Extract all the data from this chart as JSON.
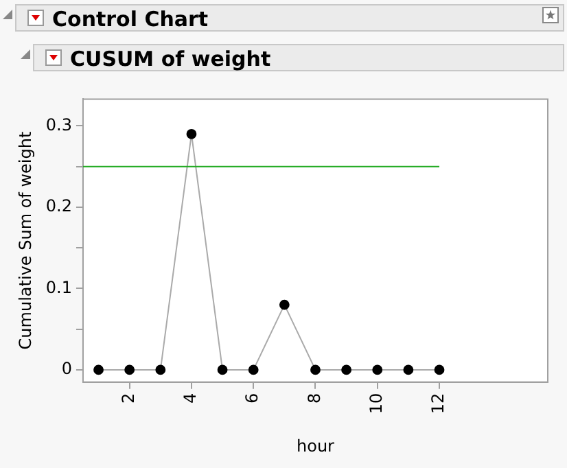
{
  "chart_data": {
    "type": "line",
    "title": "Control Chart",
    "subtitle": "CUSUM of weight",
    "xlabel": "hour",
    "ylabel": "Cumulative Sum of weight",
    "x": [
      1,
      2,
      3,
      4,
      5,
      6,
      7,
      8,
      9,
      10,
      11,
      12
    ],
    "series": [
      {
        "color": "#000000",
        "values": [
          0,
          0,
          0,
          0.29,
          0,
          0,
          0.08,
          0,
          0,
          0,
          0,
          0
        ]
      }
    ],
    "xlim": [
      0.5,
      15.5
    ],
    "xticks": [
      2,
      4,
      6,
      8,
      10,
      12
    ],
    "ylim": [
      -0.015,
      0.333
    ],
    "yticks": [
      0,
      {
        "value": 0.05,
        "label": null
      },
      0.1,
      {
        "value": 0.15,
        "label": null
      },
      0.2,
      {
        "value": 0.25,
        "label": null
      },
      0.3
    ],
    "ref_lines": [
      {
        "axis": "y",
        "value": 0.25,
        "color": "#22aa22"
      }
    ],
    "legend": false,
    "marker": "circle",
    "line_style": "solid"
  }
}
